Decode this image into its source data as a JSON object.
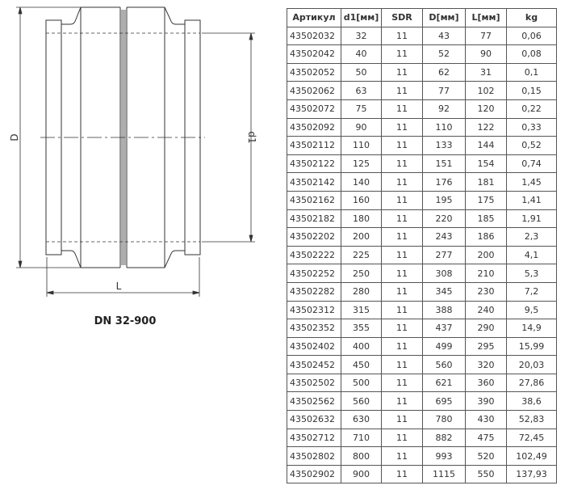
{
  "drawing": {
    "caption": "DN 32-900",
    "dim_D": "D",
    "dim_d1": "d1",
    "dim_L": "L"
  },
  "table": {
    "headers": [
      "Артикул",
      "d1[мм]",
      "SDR",
      "D[мм]",
      "L[мм]",
      "kg"
    ],
    "rows": [
      [
        "43502032",
        "32",
        "11",
        "43",
        "77",
        "0,06"
      ],
      [
        "43502042",
        "40",
        "11",
        "52",
        "90",
        "0,08"
      ],
      [
        "43502052",
        "50",
        "11",
        "62",
        "31",
        "0,1"
      ],
      [
        "43502062",
        "63",
        "11",
        "77",
        "102",
        "0,15"
      ],
      [
        "43502072",
        "75",
        "11",
        "92",
        "120",
        "0,22"
      ],
      [
        "43502092",
        "90",
        "11",
        "110",
        "122",
        "0,33"
      ],
      [
        "43502112",
        "110",
        "11",
        "133",
        "144",
        "0,52"
      ],
      [
        "43502122",
        "125",
        "11",
        "151",
        "154",
        "0,74"
      ],
      [
        "43502142",
        "140",
        "11",
        "176",
        "181",
        "1,45"
      ],
      [
        "43502162",
        "160",
        "11",
        "195",
        "175",
        "1,41"
      ],
      [
        "43502182",
        "180",
        "11",
        "220",
        "185",
        "1,91"
      ],
      [
        "43502202",
        "200",
        "11",
        "243",
        "186",
        "2,3"
      ],
      [
        "43502222",
        "225",
        "11",
        "277",
        "200",
        "4,1"
      ],
      [
        "43502252",
        "250",
        "11",
        "308",
        "210",
        "5,3"
      ],
      [
        "43502282",
        "280",
        "11",
        "345",
        "230",
        "7,2"
      ],
      [
        "43502312",
        "315",
        "11",
        "388",
        "240",
        "9,5"
      ],
      [
        "43502352",
        "355",
        "11",
        "437",
        "290",
        "14,9"
      ],
      [
        "43502402",
        "400",
        "11",
        "499",
        "295",
        "15,99"
      ],
      [
        "43502452",
        "450",
        "11",
        "560",
        "320",
        "20,03"
      ],
      [
        "43502502",
        "500",
        "11",
        "621",
        "360",
        "27,86"
      ],
      [
        "43502562",
        "560",
        "11",
        "695",
        "390",
        "38,6"
      ],
      [
        "43502632",
        "630",
        "11",
        "780",
        "430",
        "52,83"
      ],
      [
        "43502712",
        "710",
        "11",
        "882",
        "475",
        "72,45"
      ],
      [
        "43502802",
        "800",
        "11",
        "993",
        "520",
        "102,49"
      ],
      [
        "43502902",
        "900",
        "11",
        "1115",
        "550",
        "137,93"
      ]
    ]
  }
}
